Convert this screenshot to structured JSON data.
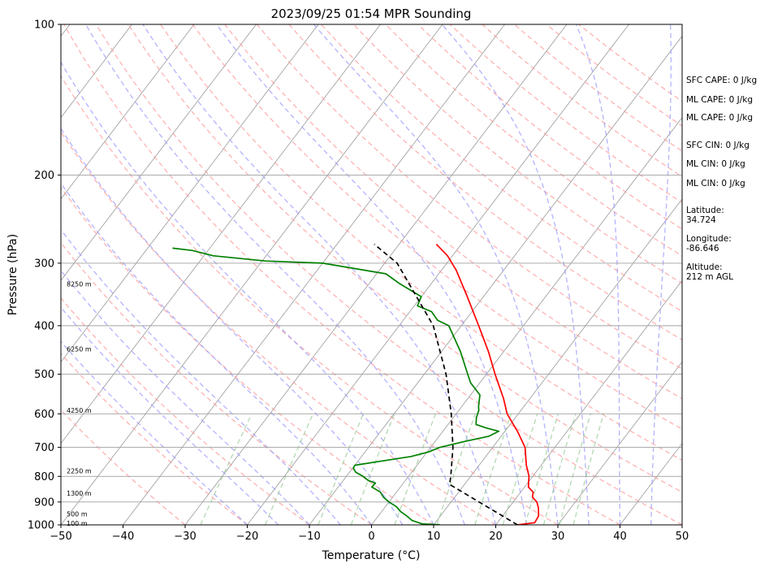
{
  "chart_data": {
    "type": "line",
    "title": "2023/09/25 01:54 MPR Sounding",
    "xlabel": "Temperature (°C)",
    "ylabel": "Pressure (hPa)",
    "xlim": [
      -50,
      50
    ],
    "ylim": [
      1000,
      100
    ],
    "y_scale": "log",
    "skew": true,
    "x_ticks": [
      "−50",
      "−40",
      "−30",
      "−20",
      "−10",
      "0",
      "10",
      "20",
      "30",
      "40",
      "50"
    ],
    "x_tick_values": [
      -50,
      -40,
      -30,
      -20,
      -10,
      0,
      10,
      20,
      30,
      40,
      50
    ],
    "y_ticks": [
      "100",
      "200",
      "300",
      "400",
      "500",
      "600",
      "700",
      "800",
      "900",
      "1000"
    ],
    "y_tick_values": [
      100,
      200,
      300,
      400,
      500,
      600,
      700,
      800,
      900,
      1000
    ],
    "grid": true,
    "colors": {
      "temperature": "#ff0000",
      "dewpoint": "#008000",
      "parcel": "#000000",
      "dry_adiabats": "#ff9999",
      "moist_adiabats": "#9999ff",
      "mixing_ratio": "#99cc99",
      "isotherms": "#999999"
    },
    "series": [
      {
        "key": "temperature",
        "points": [
          {
            "p": 1000,
            "t": 23.5
          },
          {
            "p": 990,
            "t": 26.0
          },
          {
            "p": 960,
            "t": 25.8
          },
          {
            "p": 925,
            "t": 24.8
          },
          {
            "p": 900,
            "t": 23.8
          },
          {
            "p": 880,
            "t": 22.5
          },
          {
            "p": 860,
            "t": 22.0
          },
          {
            "p": 840,
            "t": 20.6
          },
          {
            "p": 820,
            "t": 20.0
          },
          {
            "p": 800,
            "t": 19.4
          },
          {
            "p": 760,
            "t": 17.6
          },
          {
            "p": 700,
            "t": 15.2
          },
          {
            "p": 650,
            "t": 12.0
          },
          {
            "p": 600,
            "t": 8.2
          },
          {
            "p": 560,
            "t": 5.8
          },
          {
            "p": 500,
            "t": 1.4
          },
          {
            "p": 450,
            "t": -2.5
          },
          {
            "p": 400,
            "t": -7.2
          },
          {
            "p": 350,
            "t": -12.6
          },
          {
            "p": 310,
            "t": -17.6
          },
          {
            "p": 290,
            "t": -20.8
          },
          {
            "p": 275,
            "t": -24.0
          }
        ]
      },
      {
        "key": "dewpoint",
        "points": [
          {
            "p": 1000,
            "t": 11.0
          },
          {
            "p": 995,
            "t": 8.0
          },
          {
            "p": 980,
            "t": 6.0
          },
          {
            "p": 960,
            "t": 4.6
          },
          {
            "p": 940,
            "t": 3.0
          },
          {
            "p": 920,
            "t": 1.8
          },
          {
            "p": 900,
            "t": 0.0
          },
          {
            "p": 880,
            "t": -1.5
          },
          {
            "p": 860,
            "t": -2.6
          },
          {
            "p": 840,
            "t": -4.6
          },
          {
            "p": 825,
            "t": -4.5
          },
          {
            "p": 815,
            "t": -6.0
          },
          {
            "p": 800,
            "t": -7.3
          },
          {
            "p": 785,
            "t": -9.0
          },
          {
            "p": 770,
            "t": -9.9
          },
          {
            "p": 760,
            "t": -10.0
          },
          {
            "p": 745,
            "t": -6.0
          },
          {
            "p": 730,
            "t": -2.0
          },
          {
            "p": 715,
            "t": 0.2
          },
          {
            "p": 700,
            "t": 1.5
          },
          {
            "p": 680,
            "t": 5.0
          },
          {
            "p": 665,
            "t": 8.0
          },
          {
            "p": 650,
            "t": 9.0
          },
          {
            "p": 640,
            "t": 6.5
          },
          {
            "p": 630,
            "t": 4.5
          },
          {
            "p": 610,
            "t": 3.7
          },
          {
            "p": 590,
            "t": 3.2
          },
          {
            "p": 580,
            "t": 2.7
          },
          {
            "p": 550,
            "t": 1.5
          },
          {
            "p": 520,
            "t": -1.5
          },
          {
            "p": 500,
            "t": -3.0
          },
          {
            "p": 450,
            "t": -7.0
          },
          {
            "p": 400,
            "t": -12.0
          },
          {
            "p": 390,
            "t": -14.5
          },
          {
            "p": 375,
            "t": -16.5
          },
          {
            "p": 365,
            "t": -19.5
          },
          {
            "p": 350,
            "t": -20.0
          },
          {
            "p": 330,
            "t": -25.0
          },
          {
            "p": 315,
            "t": -28.5
          },
          {
            "p": 300,
            "t": -40.0
          },
          {
            "p": 297,
            "t": -49.5
          },
          {
            "p": 290,
            "t": -58.5
          },
          {
            "p": 283,
            "t": -62.5
          },
          {
            "p": 280,
            "t": -66.0
          }
        ]
      },
      {
        "key": "parcel",
        "points": [
          {
            "p": 1000,
            "t": 23.5
          },
          {
            "p": 900,
            "t": 14.5
          },
          {
            "p": 830,
            "t": 7.6
          },
          {
            "p": 800,
            "t": 6.8
          },
          {
            "p": 700,
            "t": 3.6
          },
          {
            "p": 600,
            "t": -0.8
          },
          {
            "p": 500,
            "t": -6.5
          },
          {
            "p": 400,
            "t": -14.5
          },
          {
            "p": 300,
            "t": -28.0
          },
          {
            "p": 275,
            "t": -34.0
          }
        ]
      }
    ],
    "height_labels": [
      {
        "label": "100 m",
        "p": 993
      },
      {
        "label": "500 m",
        "p": 950
      },
      {
        "label": "1300 m",
        "p": 865
      },
      {
        "label": "2250 m",
        "p": 780
      },
      {
        "label": "4250 m",
        "p": 590
      },
      {
        "label": "6250 m",
        "p": 445
      },
      {
        "label": "8250 m",
        "p": 330
      }
    ]
  },
  "side_info": [
    "SFC CAPE: 0 J/kg",
    "ML CAPE: 0 J/kg",
    "ML CAPE: 0 J/kg",
    "SFC CIN: 0 J/kg",
    "ML CIN: 0 J/kg",
    "ML CIN: 0 J/kg",
    "Latitude:",
    "34.724",
    "Longitude:",
    "-86.646",
    "Altitude:",
    "212 m AGL"
  ]
}
